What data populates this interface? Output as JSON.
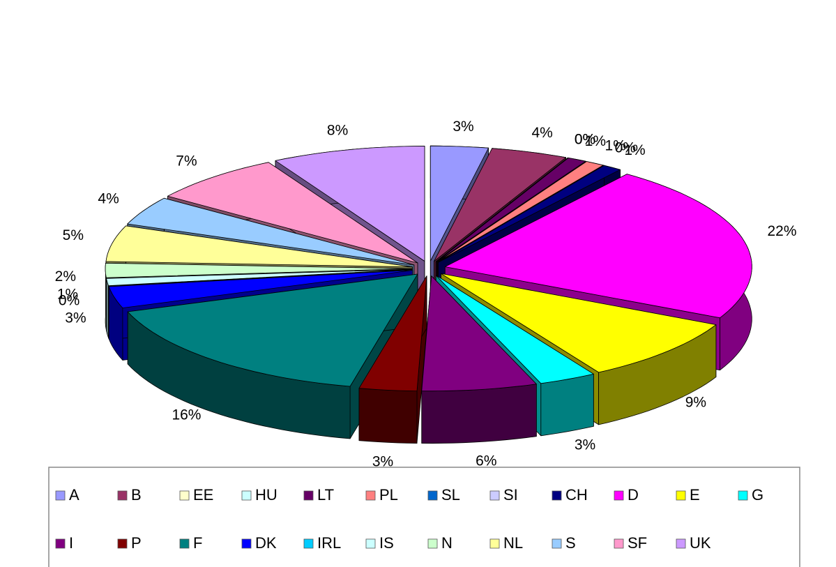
{
  "chart_data": {
    "type": "pie3d",
    "categories": [
      "A",
      "B",
      "EE",
      "HU",
      "LT",
      "PL",
      "SL",
      "SI",
      "CH",
      "D",
      "E",
      "G",
      "I",
      "P",
      "F",
      "DK",
      "IRL",
      "IS",
      "N",
      "NL",
      "S",
      "SF",
      "UK"
    ],
    "values": [
      3,
      4,
      0,
      0,
      1,
      1,
      0,
      0,
      1,
      22,
      9,
      3,
      6,
      3,
      16,
      3,
      0,
      1,
      2,
      5,
      4,
      7,
      8
    ],
    "value_labels": [
      "3%",
      "4%",
      "0%",
      "0%",
      "1%",
      "1%",
      null,
      "0%",
      "1%",
      "22%",
      "9%",
      "3%",
      "6%",
      "3%",
      "16%",
      "3%",
      "0%",
      "1%",
      "2%",
      "5%",
      "4%",
      "7%",
      "8%"
    ],
    "colors": [
      "#9999ff",
      "#993366",
      "#ffffcc",
      "#ccffff",
      "#660066",
      "#ff8080",
      "#0066cc",
      "#ccccff",
      "#000080",
      "#ff00ff",
      "#ffff00",
      "#00ffff",
      "#800080",
      "#800000",
      "#008080",
      "#0000ff",
      "#00ccff",
      "#ccffff",
      "#ccffcc",
      "#ffff99",
      "#99ccff",
      "#ff99cc",
      "#cc99ff"
    ],
    "legend": "bottom"
  }
}
